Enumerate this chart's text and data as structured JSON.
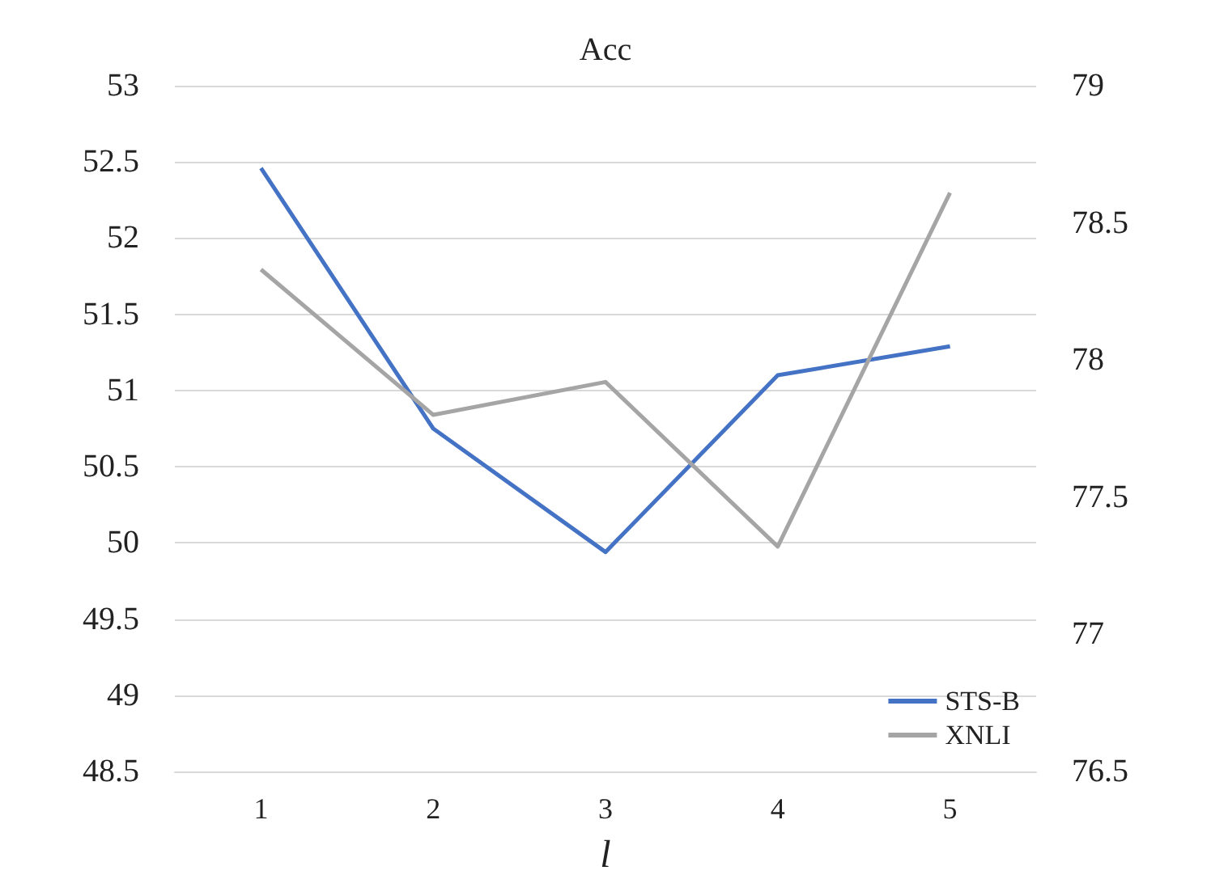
{
  "chart_data": {
    "type": "line",
    "title": "Acc",
    "xlabel": "l",
    "categories": [
      "1",
      "2",
      "3",
      "4",
      "5"
    ],
    "series": [
      {
        "name": "STS-B",
        "color": "#4472c4",
        "values": [
          52.46,
          50.75,
          49.94,
          51.1,
          51.29
        ]
      },
      {
        "name": "XNLI",
        "color": "#a5a5a5",
        "axis": "y2",
        "values": [
          78.33,
          77.8,
          77.92,
          77.32,
          78.61
        ]
      }
    ],
    "ylim": [
      48.5,
      53
    ],
    "yticks": [
      48.5,
      49,
      49.5,
      50,
      50.5,
      51,
      51.5,
      52,
      52.5,
      53
    ],
    "y2lim": [
      76.5,
      79
    ],
    "y2ticks": [
      76.5,
      77,
      77.5,
      78,
      78.5,
      79
    ],
    "grid": "y",
    "legend": "bottom right",
    "marker": "none",
    "line_style": "solid"
  }
}
